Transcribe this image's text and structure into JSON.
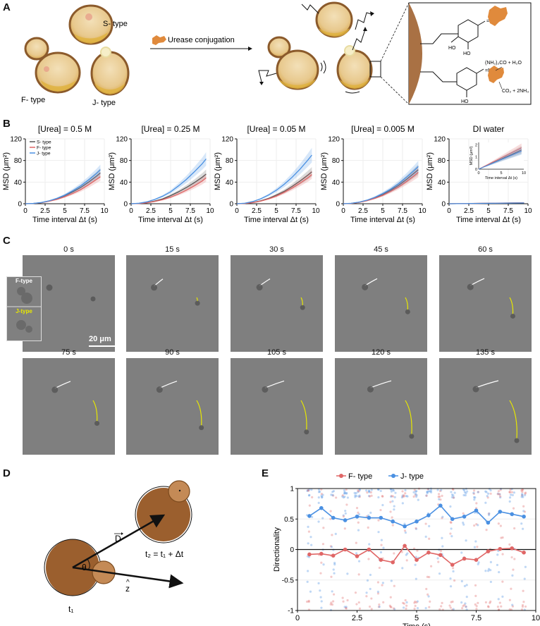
{
  "panels": {
    "a": "A",
    "b": "B",
    "c": "C",
    "d": "D",
    "e": "E"
  },
  "panel_a": {
    "labels": {
      "s_type": "S- type",
      "f_type": "F- type",
      "j_type": "J- type"
    },
    "arrow_label": "Urease  conjugation",
    "reaction_top": "(NH₂)₂CO + H₂O",
    "reaction_bottom": "CO₂ + 2NH₃",
    "ho_label": "HO"
  },
  "panel_b": {
    "ylabel": "MSD (μm²)",
    "xlabel": "Time interval Δt (s)",
    "legend": [
      "S- type",
      "F- type",
      "J- type"
    ],
    "inset_ylabel": "MSD (μm²)",
    "inset_xlabel": "Time interval Δt (s)"
  },
  "panel_c": {
    "legend_f": "F-type",
    "legend_j": "J-type",
    "scale_bar": "20 μm",
    "frames": [
      "0 s",
      "15 s",
      "30 s",
      "45 s",
      "60 s",
      "75 s",
      "90 s",
      "105 s",
      "120 s",
      "135 s"
    ]
  },
  "panel_d": {
    "vector_d": "D",
    "theta": "θ",
    "z_hat": "z",
    "t1": "t₁",
    "t2": "t₂ = t₁ + Δt"
  },
  "colors": {
    "s_type": "#555555",
    "f_type": "#e06666",
    "j_type": "#4a90e2",
    "cell": "#8b5a2b",
    "track_yellow": "#e8e800"
  },
  "chart_data": [
    {
      "type": "line",
      "title": "[Urea] = 0.5 M",
      "xlabel": "Time interval Δt (s)",
      "ylabel": "MSD (μm²)",
      "xlim": [
        0,
        10
      ],
      "ylim": [
        0,
        120
      ],
      "xticks": [
        "0",
        "2.5",
        "5",
        "7.5",
        "10"
      ],
      "yticks": [
        "0",
        "40",
        "80",
        "120"
      ],
      "x": [
        0,
        1,
        2,
        3,
        4,
        5,
        6,
        7,
        8,
        9,
        9.5
      ],
      "series": [
        {
          "name": "S- type",
          "values": [
            0,
            0.5,
            2,
            5,
            9,
            15,
            22,
            30,
            40,
            51,
            57
          ]
        },
        {
          "name": "F- type",
          "values": [
            0,
            0.5,
            1.8,
            4.5,
            8,
            13,
            19,
            26,
            35,
            45,
            50
          ]
        },
        {
          "name": "J- type",
          "values": [
            0,
            0.6,
            2.2,
            5.4,
            10,
            16,
            24,
            33,
            44,
            56,
            63
          ]
        }
      ]
    },
    {
      "type": "line",
      "title": "[Urea] = 0.25 M",
      "xlabel": "Time interval Δt (s)",
      "ylabel": "MSD (μm²)",
      "xlim": [
        0,
        10
      ],
      "ylim": [
        0,
        120
      ],
      "xticks": [
        "0",
        "2.5",
        "5",
        "7.5",
        "10"
      ],
      "yticks": [
        "0",
        "40",
        "80",
        "120"
      ],
      "x": [
        0,
        1,
        2,
        3,
        4,
        5,
        6,
        7,
        8,
        9,
        9.5
      ],
      "series": [
        {
          "name": "S- type",
          "values": [
            0,
            0.5,
            2,
            5,
            9,
            15,
            22,
            30,
            39,
            49,
            55
          ]
        },
        {
          "name": "F- type",
          "values": [
            0,
            0.4,
            1.7,
            4.2,
            7.5,
            12,
            18,
            25,
            33,
            42,
            48
          ]
        },
        {
          "name": "J- type",
          "values": [
            0,
            0.9,
            3.5,
            8,
            14,
            22,
            33,
            45,
            59,
            74,
            83
          ]
        }
      ]
    },
    {
      "type": "line",
      "title": "[Urea] = 0.05 M",
      "xlabel": "Time interval Δt (s)",
      "ylabel": "MSD (μm²)",
      "xlim": [
        0,
        10
      ],
      "ylim": [
        0,
        120
      ],
      "xticks": [
        "0",
        "2.5",
        "5",
        "7.5",
        "10"
      ],
      "yticks": [
        "0",
        "40",
        "80",
        "120"
      ],
      "x": [
        0,
        1,
        2,
        3,
        4,
        5,
        6,
        7,
        8,
        9,
        9.5
      ],
      "series": [
        {
          "name": "S- type",
          "values": [
            0,
            0.6,
            2.3,
            5.4,
            9.8,
            16,
            23,
            32,
            42,
            53,
            59
          ]
        },
        {
          "name": "F- type",
          "values": [
            0,
            0.5,
            2,
            4.8,
            8.8,
            14,
            21,
            29,
            38,
            48,
            54
          ]
        },
        {
          "name": "J- type",
          "values": [
            0,
            1,
            4,
            9,
            16,
            25,
            36,
            49,
            64,
            81,
            90
          ]
        }
      ]
    },
    {
      "type": "line",
      "title": "[Urea] = 0.005 M",
      "xlabel": "Time interval Δt (s)",
      "ylabel": "MSD (μm²)",
      "xlim": [
        0,
        10
      ],
      "ylim": [
        0,
        120
      ],
      "xticks": [
        "0",
        "2.5",
        "5",
        "7.5",
        "10"
      ],
      "yticks": [
        "0",
        "40",
        "80",
        "120"
      ],
      "x": [
        0,
        1,
        2,
        3,
        4,
        5,
        6,
        7,
        8,
        9,
        9.5
      ],
      "series": [
        {
          "name": "S- type",
          "values": [
            0,
            0.7,
            2.7,
            6,
            11,
            17,
            25,
            34,
            45,
            57,
            63
          ]
        },
        {
          "name": "F- type",
          "values": [
            0,
            0.6,
            2.4,
            5.5,
            10,
            15.5,
            23,
            31,
            41,
            52,
            58
          ]
        },
        {
          "name": "J- type",
          "values": [
            0,
            0.8,
            3,
            6.6,
            12,
            19,
            27,
            37,
            49,
            62,
            69
          ]
        }
      ]
    },
    {
      "type": "line",
      "title": "DI  water",
      "xlabel": "Time interval Δt (s)",
      "ylabel": "MSD (μm²)",
      "xlim": [
        0,
        10
      ],
      "ylim": [
        0,
        120
      ],
      "xticks": [
        "0",
        "2.5",
        "5",
        "7.5",
        "10"
      ],
      "yticks": [
        "0",
        "40",
        "80",
        "120"
      ],
      "x": [
        0,
        5,
        9.5
      ],
      "series": [
        {
          "name": "S- type",
          "values": [
            0,
            0.8,
            1.6
          ]
        },
        {
          "name": "F- type",
          "values": [
            0,
            0.9,
            1.8
          ]
        },
        {
          "name": "J- type",
          "values": [
            0,
            0.8,
            1.5
          ]
        }
      ],
      "inset": {
        "xlim": [
          0,
          10
        ],
        "ylim": [
          0,
          2.2
        ],
        "xticks": [
          "0",
          "5",
          "10"
        ],
        "yticks": [
          "0",
          "1",
          "2"
        ],
        "x": [
          0,
          1,
          2,
          3,
          4,
          5,
          6,
          7,
          8,
          9,
          9.5
        ],
        "series": [
          {
            "name": "S- type",
            "values": [
              0,
              0.17,
              0.33,
              0.5,
              0.66,
              0.83,
              1,
              1.16,
              1.33,
              1.5,
              1.58
            ]
          },
          {
            "name": "F- type",
            "values": [
              0,
              0.19,
              0.37,
              0.56,
              0.74,
              0.93,
              1.11,
              1.3,
              1.48,
              1.67,
              1.76
            ]
          },
          {
            "name": "J- type",
            "values": [
              0,
              0.16,
              0.31,
              0.47,
              0.63,
              0.79,
              0.94,
              1.1,
              1.26,
              1.41,
              1.49
            ]
          }
        ]
      }
    },
    {
      "type": "line",
      "title": "",
      "xlabel": "Time (s)",
      "ylabel": "Directionality",
      "xlim": [
        0,
        10
      ],
      "ylim": [
        -1,
        1
      ],
      "xticks": [
        "0",
        "2.5",
        "5",
        "7.5",
        "10"
      ],
      "yticks": [
        "-1",
        "-0.5",
        "0",
        "0.5",
        "1"
      ],
      "legend": [
        "F- type",
        "J- type"
      ],
      "x": [
        0.5,
        1,
        1.5,
        2,
        2.5,
        3,
        3.5,
        4,
        4.5,
        5,
        5.5,
        6,
        6.5,
        7,
        7.5,
        8,
        8.5,
        9,
        9.5
      ],
      "series": [
        {
          "name": "F- type",
          "values": [
            -0.08,
            -0.07,
            -0.1,
            0.0,
            -0.11,
            0.0,
            -0.17,
            -0.21,
            0.06,
            -0.17,
            -0.05,
            -0.09,
            -0.25,
            -0.15,
            -0.17,
            -0.03,
            0.01,
            0.02,
            -0.05
          ]
        },
        {
          "name": "J- type",
          "values": [
            0.55,
            0.68,
            0.52,
            0.48,
            0.54,
            0.52,
            0.52,
            0.46,
            0.38,
            0.46,
            0.56,
            0.72,
            0.5,
            0.54,
            0.64,
            0.44,
            0.62,
            0.58,
            0.54
          ]
        }
      ]
    }
  ]
}
